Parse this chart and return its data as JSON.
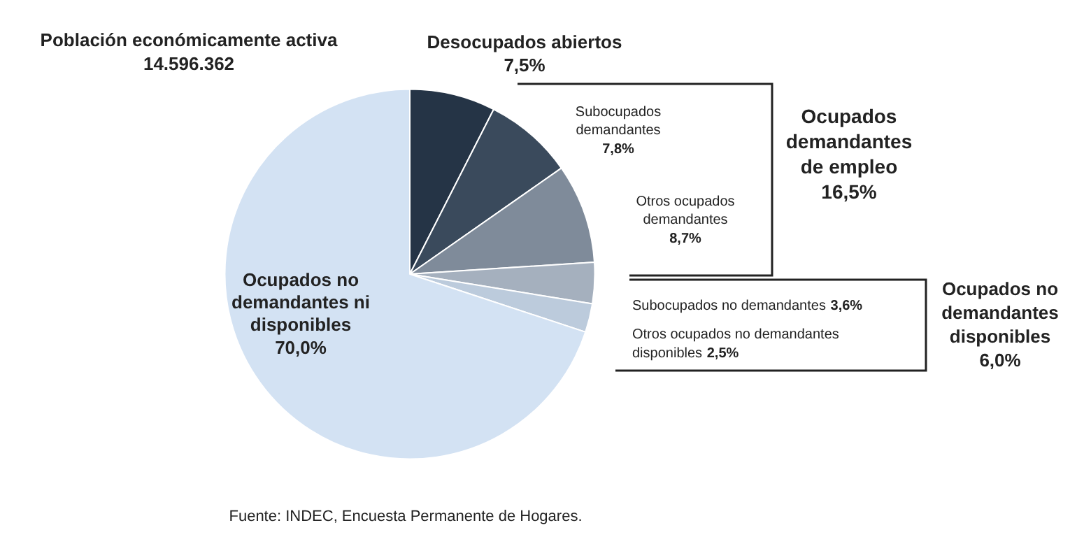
{
  "chart_data": {
    "type": "pie",
    "categories": [
      "Desocupados abiertos",
      "Subocupados demandantes",
      "Otros ocupados demandantes",
      "Subocupados no demandantes",
      "Otros ocupados no demandantes disponibles",
      "Ocupados no demandantes ni disponibles"
    ],
    "values": [
      7.5,
      7.8,
      8.7,
      3.6,
      2.5,
      70.0
    ],
    "value_labels": [
      "7,5%",
      "7,8%",
      "8,7%",
      "3,6%",
      "2,5%",
      "70,0%"
    ],
    "colors": [
      "#253446",
      "#3a4a5c",
      "#7f8b9a",
      "#a5b0be",
      "#bccbdc",
      "#d3e2f3"
    ],
    "annotations": [
      "Población económicamente activa 14.596.362",
      "Ocupados demandantes de empleo 16,5%",
      "Ocupados no demandantes disponibles 6,0%",
      "Fuente: INDEC, Encuesta Permanente de Hogares."
    ]
  }
}
